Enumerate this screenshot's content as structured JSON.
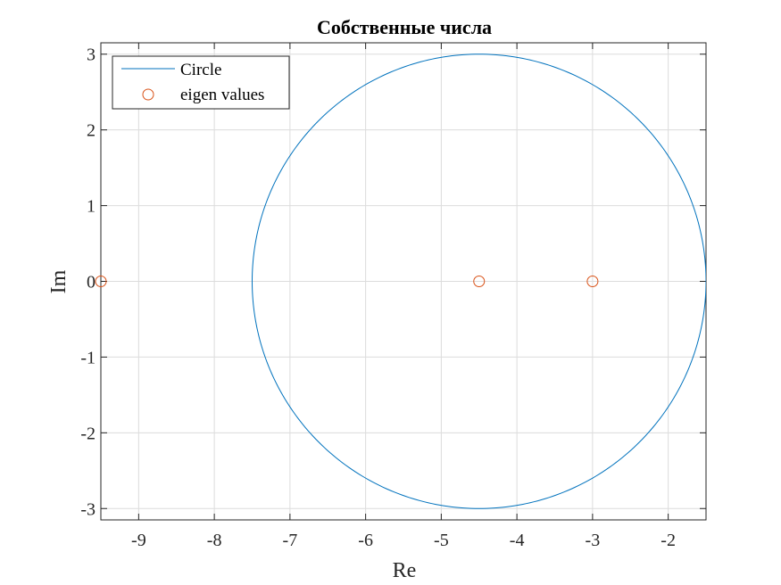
{
  "chart_data": {
    "type": "scatter",
    "title": "Собственные числа",
    "xlabel": "Re",
    "ylabel": "Im",
    "xlim": [
      -9.5,
      -1.5
    ],
    "ylim": [
      -3.15,
      3.15
    ],
    "xticks": [
      -9,
      -8,
      -7,
      -6,
      -5,
      -4,
      -3,
      -2
    ],
    "yticks": [
      -3,
      -2,
      -1,
      0,
      1,
      2,
      3
    ],
    "xtick_labels": [
      "-9",
      "-8",
      "-7",
      "-6",
      "-5",
      "-4",
      "-3",
      "-2"
    ],
    "ytick_labels": [
      "-3",
      "-2",
      "-1",
      "0",
      "1",
      "2",
      "3"
    ],
    "grid": true,
    "legend_position": "top-left",
    "series": [
      {
        "name": "Circle",
        "kind": "line",
        "color": "#0072BD",
        "center": [
          -4.5,
          0
        ],
        "radius": 3
      },
      {
        "name": "eigen values",
        "kind": "marker",
        "marker": "circle-open",
        "color": "#D95319",
        "x": [
          -9.5,
          -4.5,
          -3
        ],
        "y": [
          0,
          0,
          0
        ]
      }
    ]
  }
}
